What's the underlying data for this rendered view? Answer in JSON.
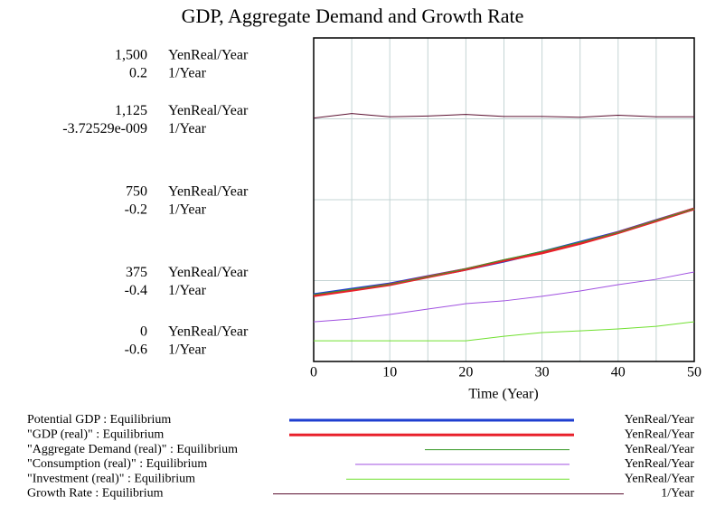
{
  "chart_data": {
    "type": "line",
    "title": "GDP, Aggregate Demand and Growth Rate",
    "xlabel": "Time (Year)",
    "yunit": "YenReal/Year",
    "y2unit": "1/Year",
    "x": [
      0,
      5,
      10,
      15,
      20,
      25,
      30,
      35,
      40,
      45,
      50
    ],
    "xlim": [
      0,
      50
    ],
    "xticks": [
      0,
      10,
      20,
      30,
      40,
      50
    ],
    "ylim": [
      0,
      1500
    ],
    "yticks": [
      {
        "value": 1500,
        "label": "1,500"
      },
      {
        "value": 1125,
        "label": "1,125"
      },
      750,
      375,
      0
    ],
    "y2lim": [
      -0.6,
      0.2
    ],
    "y2ticks": [
      0.2,
      {
        "value": -3.72529e-09,
        "label": "-3.72529e-009"
      },
      -0.2,
      -0.4,
      -0.6
    ],
    "grid": true,
    "series": [
      {
        "name": "Potential GDP : Equilibrium",
        "unit": "YenReal/Year",
        "color": "#1f3fd0",
        "width": 3,
        "values": [
          310,
          335,
          360,
          394,
          427,
          465,
          507,
          553,
          599,
          654,
          708
        ]
      },
      {
        "name": "\"GDP (real)\" : Equilibrium",
        "unit": "YenReal/Year",
        "color": "#e8202a",
        "width": 3,
        "values": [
          305,
          330,
          356,
          392,
          427,
          468,
          503,
          547,
          597,
          652,
          708
        ]
      },
      {
        "name": "\"Aggregate Demand (real)\" : Equilibrium",
        "unit": "YenReal/Year",
        "color": "#3a9a2a",
        "width": 1,
        "values": [
          310,
          334,
          358,
          393,
          430,
          472,
          510,
          553,
          598,
          654,
          708
        ]
      },
      {
        "name": "\"Consumption (real)\" : Equilibrium",
        "unit": "YenReal/Year",
        "color": "#a050e0",
        "width": 1,
        "values": [
          184,
          197,
          218,
          243,
          268,
          281,
          302,
          327,
          356,
          381,
          415
        ]
      },
      {
        "name": "\"Investment (real)\" : Equilibrium",
        "unit": "YenReal/Year",
        "color": "#70e030",
        "width": 1,
        "values": [
          96,
          96,
          96,
          96,
          96,
          117,
          134,
          142,
          151,
          163,
          184
        ]
      },
      {
        "name": "Growth Rate : Equilibrium",
        "unit": "1/Year",
        "color": "#5a1030",
        "width": 1,
        "axis": "y2",
        "values": [
          0.002,
          0.013,
          0.005,
          0.007,
          0.011,
          0.006,
          0.006,
          0.004,
          0.009,
          0.005,
          0.005
        ]
      }
    ]
  }
}
